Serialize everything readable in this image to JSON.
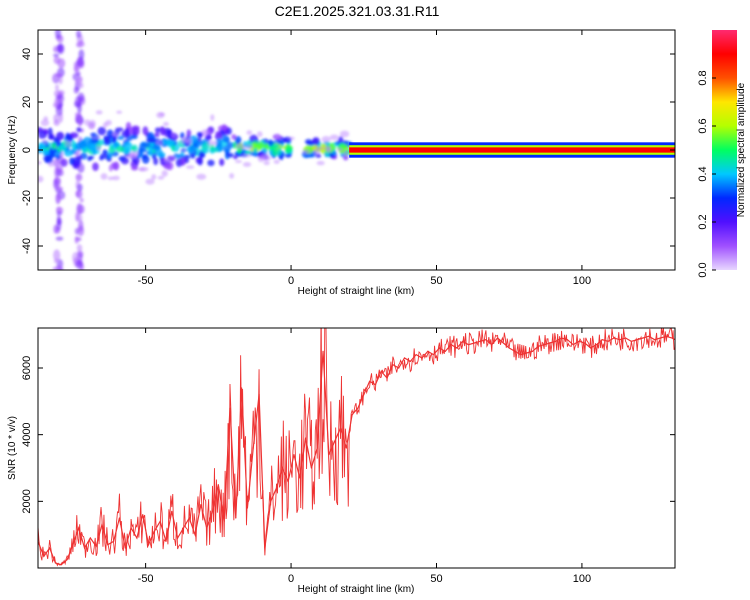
{
  "title": "C2E1.2025.321.03.31.R11",
  "chart_data": [
    {
      "type": "heatmap",
      "title": "C2E1.2025.321.03.31.R11",
      "xlabel": "Height of straight line (km)",
      "ylabel": "Frequency (Hz)",
      "xlim": [
        -87,
        132
      ],
      "ylim": [
        -50,
        50
      ],
      "x_ticks": [
        -50,
        0,
        50,
        100
      ],
      "x_tick_labels": [
        "-50",
        "0",
        "50",
        "100"
      ],
      "y_ticks": [
        -40,
        -20,
        0,
        20,
        40
      ],
      "y_tick_labels": [
        "-40",
        "-20",
        "0",
        "20",
        "40"
      ],
      "colorbar": {
        "label": "Normalized spectral amplitude",
        "range": [
          0,
          1
        ],
        "ticks": [
          0.0,
          0.2,
          0.4,
          0.6,
          0.8
        ],
        "tick_labels": [
          "0.0",
          "0.2",
          "0.4",
          "0.6",
          "0.8"
        ],
        "colormap": [
          "#e8d6ff",
          "#a050ff",
          "#5010ff",
          "#0028ff",
          "#00c8ff",
          "#00ff60",
          "#b4ff00",
          "#ffe600",
          "#ff5000",
          "#ff0000",
          "#ff2a70"
        ]
      },
      "bands": [
        {
          "x_start": -87,
          "x_end": -20,
          "f_center": 1,
          "f_halfwidth": 6,
          "amplitude": 0.35
        },
        {
          "x_start": -20,
          "x_end": 0,
          "f_center": 1,
          "f_halfwidth": 3,
          "amplitude": 0.5
        },
        {
          "x_start": 5,
          "x_end": 20,
          "f_center": 0.5,
          "f_halfwidth": 2.5,
          "amplitude": 0.55
        },
        {
          "x_start": 20,
          "x_end": 132,
          "f_center": 0,
          "f_halfwidth": 1,
          "amplitude": 0.95
        }
      ],
      "vertical_streaks": [
        {
          "x": -80,
          "f_min": -50,
          "f_max": 50
        },
        {
          "x": -73,
          "f_min": -50,
          "f_max": 50
        }
      ]
    },
    {
      "type": "line",
      "xlabel": "Height of straight line (km)",
      "ylabel": "SNR (10 * v/v)",
      "xlim": [
        -87,
        132
      ],
      "ylim": [
        0,
        7200
      ],
      "x_ticks": [
        -50,
        0,
        50,
        100
      ],
      "x_tick_labels": [
        "-50",
        "0",
        "50",
        "100"
      ],
      "y_ticks": [
        2000,
        4000,
        6000
      ],
      "y_tick_labels": [
        "2000",
        "4000",
        "6000"
      ],
      "color": "#ee3333",
      "x": [
        -87,
        -85,
        -83,
        -81,
        -79,
        -77,
        -75,
        -73,
        -71,
        -69,
        -67,
        -65,
        -63,
        -61,
        -59,
        -57,
        -55,
        -53,
        -51,
        -49,
        -47,
        -45,
        -43,
        -41,
        -39,
        -37,
        -35,
        -33,
        -31,
        -29,
        -27,
        -25,
        -23,
        -21,
        -19,
        -17,
        -15,
        -13,
        -11,
        -9,
        -7,
        -5,
        -3,
        -1,
        1,
        3,
        5,
        7,
        9,
        11,
        13,
        15,
        17,
        19,
        21,
        23,
        25,
        27,
        29,
        31,
        33,
        35,
        37,
        39,
        41,
        43,
        45,
        47,
        49,
        51,
        53,
        55,
        57,
        59,
        61,
        63,
        65,
        67,
        69,
        71,
        73,
        75,
        77,
        79,
        81,
        83,
        85,
        87,
        89,
        91,
        93,
        95,
        97,
        99,
        101,
        103,
        105,
        107,
        109,
        111,
        113,
        115,
        117,
        119,
        121,
        123,
        125,
        127,
        129,
        131,
        132
      ],
      "y": [
        800,
        350,
        600,
        150,
        100,
        250,
        700,
        1200,
        600,
        900,
        650,
        1300,
        700,
        800,
        1500,
        600,
        1200,
        900,
        1600,
        700,
        1100,
        1400,
        800,
        1700,
        900,
        1200,
        1500,
        1000,
        1900,
        1200,
        1700,
        2500,
        1400,
        4800,
        1500,
        5400,
        1800,
        3600,
        5200,
        600,
        2000,
        2400,
        3000,
        2600,
        3400,
        2700,
        3900,
        3000,
        3600,
        6500,
        3400,
        3800,
        4200,
        3600,
        4600,
        4800,
        5200,
        5600,
        5500,
        5900,
        5700,
        6100,
        6000,
        6300,
        6200,
        6400,
        6300,
        6500,
        6400,
        6600,
        6500,
        6700,
        6600,
        6800,
        6700,
        6750,
        6800,
        6850,
        6700,
        6900,
        6750,
        6600,
        6500,
        6400,
        6450,
        6500,
        6650,
        6700,
        6750,
        6800,
        6900,
        6850,
        6700,
        6800,
        6750,
        6600,
        6700,
        6850,
        6800,
        6900,
        6850,
        6900,
        6800,
        6850,
        6900,
        6950,
        6850,
        6900,
        6950,
        6900,
        6850
      ]
    }
  ]
}
